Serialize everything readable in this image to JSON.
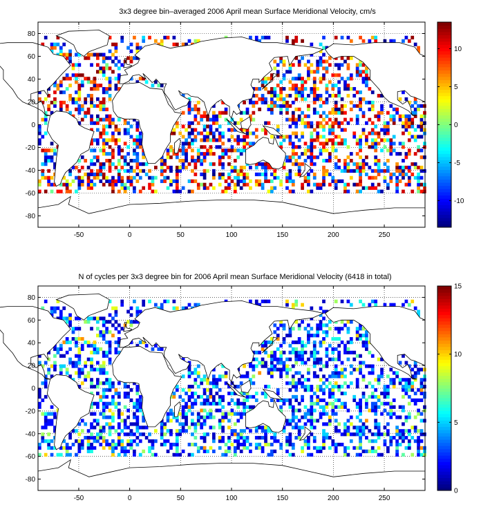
{
  "chart_data": [
    {
      "type": "heatmap",
      "title": "3x3 degree bin–averaged 2006 April mean Surface Meridional Velocity, cm/s",
      "xlim": [
        -90,
        290
      ],
      "ylim": [
        -90,
        90
      ],
      "x_ticks": [
        -50,
        0,
        50,
        100,
        150,
        200,
        250
      ],
      "y_ticks": [
        80,
        60,
        40,
        20,
        0,
        -20,
        -40,
        -60,
        -80
      ],
      "x_tick_labels": [
        "-50",
        "0",
        "50",
        "100",
        "150",
        "200",
        "250"
      ],
      "y_tick_labels": [
        "80",
        "60",
        "40",
        "20",
        "0",
        "-20",
        "-40",
        "-60",
        "-80"
      ],
      "bin_size_deg": 3,
      "grid": "dotted",
      "colormap": "jet",
      "colorbar": {
        "min": -13.5,
        "max": 13.5,
        "ticks": [
          10,
          5,
          0,
          -5,
          -10
        ],
        "tick_labels": [
          "10",
          "5",
          "0",
          "-5",
          "-10"
        ]
      },
      "seed": 7,
      "value_mode": "velocity"
    },
    {
      "type": "heatmap",
      "title": "N of cycles per 3x3 degree bin for 2006 April mean Surface Meridional Velocity (6418 in total)",
      "xlim": [
        -90,
        290
      ],
      "ylim": [
        -90,
        90
      ],
      "x_ticks": [
        -50,
        0,
        50,
        100,
        150,
        200,
        250
      ],
      "y_ticks": [
        80,
        60,
        40,
        20,
        0,
        -20,
        -40,
        -60,
        -80
      ],
      "x_tick_labels": [
        "-50",
        "0",
        "50",
        "100",
        "150",
        "200",
        "250"
      ],
      "y_tick_labels": [
        "80",
        "60",
        "40",
        "20",
        "0",
        "-20",
        "-40",
        "-60",
        "-80"
      ],
      "bin_size_deg": 3,
      "grid": "dotted",
      "colormap": "jet",
      "colorbar": {
        "min": 0,
        "max": 15,
        "ticks": [
          15,
          10,
          5,
          0
        ],
        "tick_labels": [
          "15",
          "10",
          "5",
          "0"
        ]
      },
      "seed": 7,
      "value_mode": "count"
    }
  ]
}
